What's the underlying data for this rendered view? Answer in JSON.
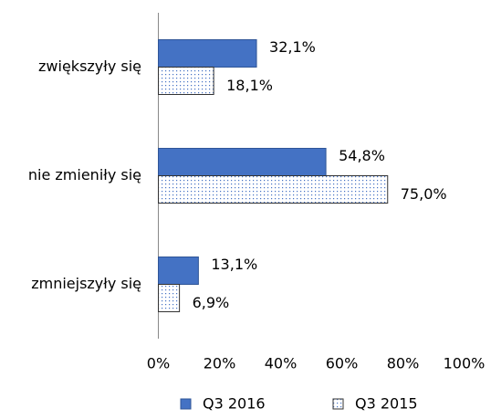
{
  "chart_data": {
    "type": "hbar",
    "categories": [
      "zwiększyły się",
      "nie zmieniły się",
      "zmniejszyły się"
    ],
    "series": [
      {
        "name": "Q3 2016",
        "color": "#4472c4",
        "pattern": "solid",
        "values": [
          32.1,
          54.8,
          13.1
        ],
        "value_labels": [
          "32,1%",
          "54,8%",
          "13,1%"
        ]
      },
      {
        "name": "Q3 2015",
        "color": "#4472c4",
        "pattern": "dots",
        "values": [
          18.1,
          75.0,
          6.9
        ],
        "value_labels": [
          "18,1%",
          "75,0%",
          "6,9%"
        ]
      }
    ],
    "xlim": [
      0,
      100
    ],
    "xticks": [
      {
        "value": 0,
        "label": "0%"
      },
      {
        "value": 20,
        "label": "20%"
      },
      {
        "value": 40,
        "label": "40%"
      },
      {
        "value": 60,
        "label": "60%"
      },
      {
        "value": 80,
        "label": "80%"
      },
      {
        "value": 100,
        "label": "100%"
      }
    ],
    "legend": "bottom"
  }
}
